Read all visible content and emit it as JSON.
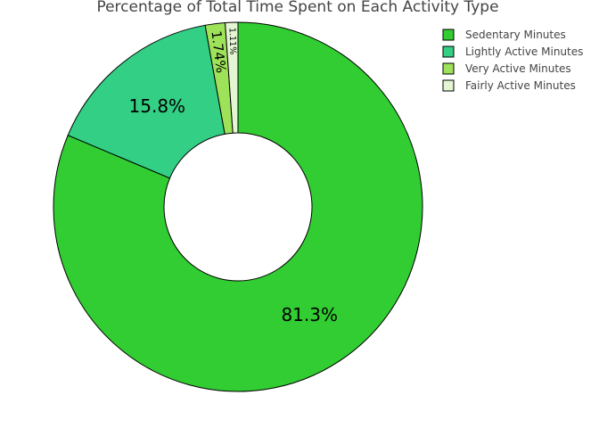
{
  "chart_data": {
    "type": "pie",
    "title": "Percentage of Total Time Spent on Each Activity Type",
    "hole": true,
    "legend_position": "top-right",
    "slices": [
      {
        "name": "Sedentary Minutes",
        "value": 81.3,
        "label": "81.3%",
        "color": "#32cd32"
      },
      {
        "name": "Lightly Active Minutes",
        "value": 15.8,
        "label": "15.8%",
        "color": "#33cf85"
      },
      {
        "name": "Very Active Minutes",
        "value": 1.74,
        "label": "1.74%",
        "color": "#9ee25a"
      },
      {
        "name": "Fairly Active Minutes",
        "value": 1.11,
        "label": "1.11%",
        "color": "#e3f5d2"
      }
    ],
    "legend": [
      "Sedentary Minutes",
      "Lightly Active Minutes",
      "Very Active Minutes",
      "Fairly Active Minutes"
    ]
  }
}
